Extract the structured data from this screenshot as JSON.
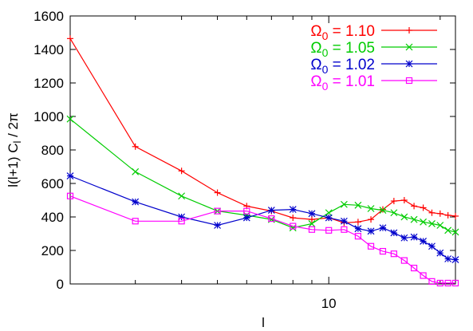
{
  "chart_data": {
    "type": "line",
    "xlabel": "l",
    "ylabel": "l(l+1) C_l / 2π",
    "x_scale": "log",
    "xlim": [
      2,
      22
    ],
    "ylim": [
      0,
      1600
    ],
    "yticks": [
      0,
      200,
      400,
      600,
      800,
      1000,
      1200,
      1400,
      1600
    ],
    "xticks": [
      10
    ],
    "legend_position": "top-right",
    "grid": false,
    "series": [
      {
        "name": "Ω_0 = 1.10",
        "color": "#ff0000",
        "marker": "plus",
        "x": [
          2,
          3,
          4,
          5,
          6,
          7,
          8,
          9,
          10,
          11,
          12,
          13,
          14,
          15,
          16,
          17,
          18,
          19,
          20,
          21,
          22
        ],
        "y": [
          1465,
          820,
          675,
          545,
          465,
          435,
          395,
          385,
          395,
          365,
          370,
          385,
          445,
          495,
          500,
          465,
          455,
          425,
          420,
          410,
          405
        ]
      },
      {
        "name": "Ω_0 = 1.05",
        "color": "#00cc00",
        "marker": "x",
        "x": [
          2,
          3,
          4,
          5,
          6,
          7,
          8,
          9,
          10,
          11,
          12,
          13,
          14,
          15,
          16,
          17,
          18,
          19,
          20,
          21,
          22
        ],
        "y": [
          985,
          670,
          525,
          435,
          410,
          385,
          335,
          360,
          425,
          475,
          470,
          450,
          440,
          425,
          400,
          385,
          370,
          360,
          350,
          320,
          310
        ]
      },
      {
        "name": "Ω_0 = 1.02",
        "color": "#0000cc",
        "marker": "star",
        "x": [
          2,
          3,
          4,
          5,
          6,
          7,
          8,
          9,
          10,
          11,
          12,
          13,
          14,
          15,
          16,
          17,
          18,
          19,
          20,
          21,
          22
        ],
        "y": [
          645,
          490,
          400,
          350,
          395,
          440,
          445,
          420,
          395,
          375,
          330,
          315,
          335,
          305,
          275,
          280,
          255,
          225,
          185,
          150,
          145
        ]
      },
      {
        "name": "Ω_0 = 1.01",
        "color": "#ff00ff",
        "marker": "square",
        "x": [
          2,
          3,
          4,
          5,
          6,
          7,
          8,
          9,
          10,
          11,
          12,
          13,
          14,
          15,
          16,
          17,
          18,
          19,
          20,
          21,
          22
        ],
        "y": [
          525,
          375,
          375,
          435,
          435,
          390,
          345,
          325,
          320,
          325,
          285,
          225,
          195,
          180,
          140,
          95,
          50,
          15,
          5,
          5,
          5
        ]
      }
    ]
  },
  "legend": [
    {
      "symbol": "Ω",
      "sub": "0",
      "text": " = 1.10"
    },
    {
      "symbol": "Ω",
      "sub": "0",
      "text": " = 1.05"
    },
    {
      "symbol": "Ω",
      "sub": "0",
      "text": " = 1.02"
    },
    {
      "symbol": "Ω",
      "sub": "0",
      "text": " = 1.01"
    }
  ],
  "ylabel_parts": {
    "pre": "l(l+1) C",
    "sub": "l",
    "post": " / 2π"
  },
  "tick_labels": {
    "x": [
      "10"
    ],
    "y": [
      "0",
      "200",
      "400",
      "600",
      "800",
      "1000",
      "1200",
      "1400",
      "1600"
    ]
  }
}
